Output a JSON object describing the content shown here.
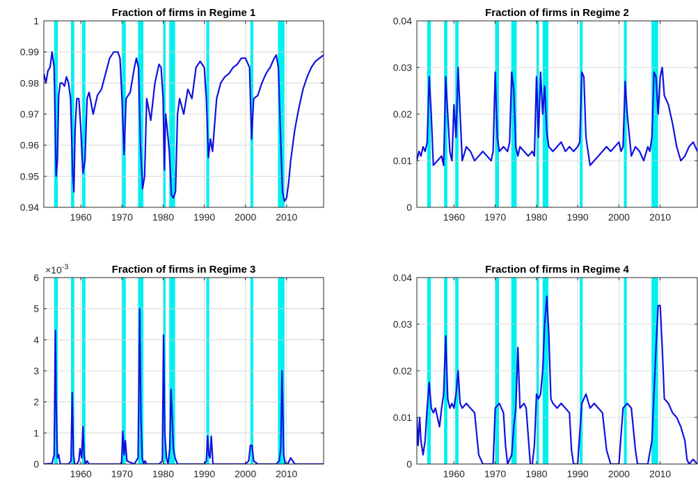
{
  "chart_data": [
    {
      "type": "line",
      "title": "Fraction of firms in Regime 1",
      "xlim": [
        1951,
        2019
      ],
      "ylim": [
        0.94,
        1.0
      ],
      "xticks": [
        1960,
        1970,
        1980,
        1990,
        2000,
        2010
      ],
      "yticks": [
        "0.94",
        "0.95",
        "0.96",
        "0.97",
        "0.98",
        "0.99",
        "1"
      ],
      "ytick_values": [
        0.94,
        0.95,
        0.96,
        0.97,
        0.98,
        0.99,
        1.0
      ],
      "grid": true,
      "line_color": "#1010e0",
      "recession_color": "#00f0f0",
      "recessions": [
        [
          1953.5,
          1954.4
        ],
        [
          1957.6,
          1958.4
        ],
        [
          1960.3,
          1961.1
        ],
        [
          1969.9,
          1970.9
        ],
        [
          1973.9,
          1975.2
        ],
        [
          1980.0,
          1980.6
        ],
        [
          1981.5,
          1982.9
        ],
        [
          1990.5,
          1991.2
        ],
        [
          2001.2,
          2001.9
        ],
        [
          2007.9,
          2009.5
        ]
      ],
      "series": [
        {
          "x": [
            1951.0,
            1951.5,
            1952.0,
            1952.5,
            1953.0,
            1953.5,
            1954.0,
            1954.3,
            1954.6,
            1955.0,
            1955.5,
            1956.0,
            1956.5,
            1957.0,
            1957.5,
            1958.0,
            1958.3,
            1958.6,
            1959.0,
            1959.5,
            1960.0,
            1960.5,
            1961.0,
            1961.5,
            1962.0,
            1963.0,
            1964.0,
            1965.0,
            1966.0,
            1967.0,
            1968.0,
            1969.0,
            1969.5,
            1970.0,
            1970.5,
            1971.0,
            1972.0,
            1973.0,
            1973.5,
            1974.0,
            1974.5,
            1975.0,
            1975.5,
            1976.0,
            1977.0,
            1978.0,
            1979.0,
            1979.5,
            1980.0,
            1980.3,
            1980.6,
            1981.0,
            1981.5,
            1982.0,
            1982.5,
            1983.0,
            1983.5,
            1984.0,
            1985.0,
            1986.0,
            1987.0,
            1988.0,
            1989.0,
            1990.0,
            1990.5,
            1991.0,
            1991.5,
            1992.0,
            1993.0,
            1994.0,
            1995.0,
            1996.0,
            1997.0,
            1998.0,
            1999.0,
            2000.0,
            2001.0,
            2001.5,
            2002.0,
            2003.0,
            2004.0,
            2005.0,
            2006.0,
            2007.0,
            2007.5,
            2008.0,
            2008.5,
            2009.0,
            2009.5,
            2010.0,
            2010.5,
            2011.0,
            2012.0,
            2013.0,
            2014.0,
            2015.0,
            2016.0,
            2017.0,
            2018.0,
            2019.0
          ],
          "values": [
            0.983,
            0.98,
            0.984,
            0.985,
            0.99,
            0.985,
            0.95,
            0.955,
            0.976,
            0.98,
            0.98,
            0.979,
            0.982,
            0.98,
            0.975,
            0.951,
            0.945,
            0.965,
            0.975,
            0.975,
            0.965,
            0.951,
            0.955,
            0.975,
            0.977,
            0.97,
            0.976,
            0.978,
            0.983,
            0.988,
            0.99,
            0.99,
            0.988,
            0.975,
            0.957,
            0.975,
            0.977,
            0.985,
            0.988,
            0.985,
            0.96,
            0.946,
            0.95,
            0.975,
            0.968,
            0.98,
            0.986,
            0.985,
            0.975,
            0.952,
            0.97,
            0.965,
            0.958,
            0.944,
            0.943,
            0.945,
            0.97,
            0.975,
            0.97,
            0.978,
            0.975,
            0.985,
            0.987,
            0.985,
            0.975,
            0.956,
            0.962,
            0.958,
            0.975,
            0.98,
            0.982,
            0.983,
            0.985,
            0.986,
            0.988,
            0.988,
            0.985,
            0.962,
            0.975,
            0.976,
            0.98,
            0.983,
            0.985,
            0.988,
            0.989,
            0.985,
            0.965,
            0.945,
            0.942,
            0.943,
            0.948,
            0.955,
            0.965,
            0.972,
            0.978,
            0.982,
            0.985,
            0.987,
            0.988,
            0.989
          ]
        }
      ]
    },
    {
      "type": "line",
      "title": "Fraction of firms in Regime 2",
      "xlim": [
        1951,
        2019
      ],
      "ylim": [
        0,
        0.04
      ],
      "xticks": [
        1960,
        1970,
        1980,
        1990,
        2000,
        2010
      ],
      "yticks": [
        "0",
        "0.01",
        "0.02",
        "0.03",
        "0.04"
      ],
      "ytick_values": [
        0,
        0.01,
        0.02,
        0.03,
        0.04
      ],
      "grid": true,
      "line_color": "#1010e0",
      "recession_color": "#00f0f0",
      "recessions": [
        [
          1953.5,
          1954.4
        ],
        [
          1957.6,
          1958.4
        ],
        [
          1960.3,
          1961.1
        ],
        [
          1969.9,
          1970.9
        ],
        [
          1973.9,
          1975.2
        ],
        [
          1980.0,
          1980.6
        ],
        [
          1981.5,
          1982.9
        ],
        [
          1990.5,
          1991.2
        ],
        [
          2001.2,
          2001.9
        ],
        [
          2007.9,
          2009.5
        ]
      ],
      "series": [
        {
          "x": [
            1951.0,
            1951.5,
            1952.0,
            1952.5,
            1953.0,
            1953.5,
            1954.0,
            1954.5,
            1955.0,
            1956.0,
            1957.0,
            1957.5,
            1958.0,
            1958.5,
            1959.0,
            1959.5,
            1960.0,
            1960.5,
            1961.0,
            1961.5,
            1962.0,
            1963.0,
            1964.0,
            1965.0,
            1966.0,
            1967.0,
            1968.0,
            1969.0,
            1969.5,
            1970.0,
            1970.5,
            1971.0,
            1972.0,
            1973.0,
            1973.5,
            1974.0,
            1974.5,
            1975.0,
            1975.5,
            1976.0,
            1977.0,
            1978.0,
            1979.0,
            1979.5,
            1980.0,
            1980.5,
            1981.0,
            1981.5,
            1982.0,
            1982.5,
            1983.0,
            1984.0,
            1985.0,
            1986.0,
            1987.0,
            1988.0,
            1989.0,
            1990.0,
            1990.5,
            1991.0,
            1991.5,
            1992.0,
            1993.0,
            1994.0,
            1995.0,
            1996.0,
            1997.0,
            1998.0,
            1999.0,
            2000.0,
            2000.5,
            2001.0,
            2001.5,
            2002.0,
            2003.0,
            2004.0,
            2005.0,
            2006.0,
            2007.0,
            2007.5,
            2008.0,
            2008.5,
            2009.0,
            2009.5,
            2010.0,
            2010.5,
            2011.0,
            2012.0,
            2013.0,
            2014.0,
            2015.0,
            2016.0,
            2017.0,
            2018.0,
            2019.0
          ],
          "values": [
            0.01,
            0.012,
            0.011,
            0.013,
            0.012,
            0.014,
            0.028,
            0.02,
            0.009,
            0.01,
            0.011,
            0.009,
            0.028,
            0.02,
            0.012,
            0.01,
            0.022,
            0.015,
            0.03,
            0.02,
            0.01,
            0.013,
            0.012,
            0.01,
            0.011,
            0.012,
            0.011,
            0.01,
            0.012,
            0.029,
            0.015,
            0.012,
            0.013,
            0.012,
            0.014,
            0.029,
            0.025,
            0.013,
            0.011,
            0.013,
            0.012,
            0.011,
            0.012,
            0.011,
            0.028,
            0.015,
            0.029,
            0.02,
            0.026,
            0.016,
            0.013,
            0.012,
            0.013,
            0.014,
            0.012,
            0.013,
            0.012,
            0.013,
            0.014,
            0.029,
            0.028,
            0.015,
            0.009,
            0.01,
            0.011,
            0.012,
            0.013,
            0.012,
            0.013,
            0.014,
            0.012,
            0.013,
            0.027,
            0.02,
            0.011,
            0.013,
            0.012,
            0.01,
            0.013,
            0.012,
            0.015,
            0.029,
            0.028,
            0.02,
            0.028,
            0.03,
            0.024,
            0.022,
            0.018,
            0.013,
            0.01,
            0.011,
            0.013,
            0.014,
            0.012
          ]
        }
      ]
    },
    {
      "type": "line",
      "title": "Fraction of firms in Regime 3",
      "multiplier": "×10",
      "multiplier_exp": "-3",
      "xlim": [
        1951,
        2019
      ],
      "ylim": [
        0,
        6
      ],
      "xticks": [
        1960,
        1970,
        1980,
        1990,
        2000,
        2010
      ],
      "yticks": [
        "0",
        "1",
        "2",
        "3",
        "4",
        "5",
        "6"
      ],
      "ytick_values": [
        0,
        1,
        2,
        3,
        4,
        5,
        6
      ],
      "grid": true,
      "line_color": "#1010e0",
      "recession_color": "#00f0f0",
      "recessions": [
        [
          1953.5,
          1954.4
        ],
        [
          1957.6,
          1958.4
        ],
        [
          1960.3,
          1961.1
        ],
        [
          1969.9,
          1970.9
        ],
        [
          1973.9,
          1975.2
        ],
        [
          1980.0,
          1980.6
        ],
        [
          1981.5,
          1982.9
        ],
        [
          1990.5,
          1991.2
        ],
        [
          2001.2,
          2001.9
        ],
        [
          2007.9,
          2009.5
        ]
      ],
      "series": [
        {
          "x": [
            1951.0,
            1953.0,
            1953.5,
            1953.8,
            1954.0,
            1954.3,
            1954.6,
            1955.0,
            1957.0,
            1957.6,
            1957.9,
            1958.2,
            1958.5,
            1959.0,
            1959.5,
            1959.8,
            1960.2,
            1960.5,
            1960.8,
            1961.1,
            1961.5,
            1962.0,
            1965.0,
            1968.0,
            1969.5,
            1969.9,
            1970.2,
            1970.5,
            1970.8,
            1971.2,
            1973.0,
            1973.9,
            1974.3,
            1974.6,
            1974.9,
            1975.3,
            1975.6,
            1976.0,
            1979.0,
            1979.8,
            1980.1,
            1980.4,
            1980.8,
            1981.2,
            1981.6,
            1981.9,
            1982.2,
            1982.5,
            1982.9,
            1983.5,
            1984.0,
            1990.0,
            1990.5,
            1990.8,
            1991.1,
            1991.4,
            1991.7,
            1992.1,
            1995.0,
            2000.0,
            2000.8,
            2001.2,
            2001.6,
            2002.0,
            2002.5,
            2003.0,
            2007.5,
            2008.2,
            2008.6,
            2008.9,
            2009.3,
            2009.7,
            2010.3,
            2011.0,
            2012.0,
            2019.0
          ],
          "values": [
            0.0,
            0.02,
            0.3,
            4.3,
            2.0,
            0.2,
            0.3,
            0.0,
            0.0,
            0.1,
            2.3,
            0.3,
            0.0,
            0.0,
            0.1,
            0.5,
            0.2,
            1.2,
            0.3,
            0.0,
            0.1,
            0.0,
            0.0,
            0.0,
            0.0,
            0.05,
            1.05,
            0.3,
            0.75,
            0.1,
            0.0,
            0.2,
            5.0,
            1.5,
            0.2,
            0.0,
            0.1,
            0.0,
            0.0,
            0.1,
            4.15,
            1.0,
            0.2,
            0.0,
            0.5,
            2.4,
            1.5,
            0.5,
            0.2,
            0.0,
            0.0,
            0.0,
            0.1,
            0.9,
            0.3,
            0.2,
            0.9,
            0.0,
            0.0,
            0.0,
            0.1,
            0.6,
            0.6,
            0.1,
            0.05,
            0.0,
            0.0,
            0.1,
            0.5,
            3.0,
            0.3,
            0.0,
            0.0,
            0.2,
            0.0,
            0.0
          ]
        }
      ]
    },
    {
      "type": "line",
      "title": "Fraction of firms in Regime 4",
      "xlim": [
        1951,
        2019
      ],
      "ylim": [
        0,
        0.04
      ],
      "xticks": [
        1960,
        1970,
        1980,
        1990,
        2000,
        2010
      ],
      "yticks": [
        "0",
        "0.01",
        "0.02",
        "0.03",
        "0.04"
      ],
      "ytick_values": [
        0,
        0.01,
        0.02,
        0.03,
        0.04
      ],
      "grid": true,
      "line_color": "#1010e0",
      "recession_color": "#00f0f0",
      "recessions": [
        [
          1953.5,
          1954.4
        ],
        [
          1957.6,
          1958.4
        ],
        [
          1960.3,
          1961.1
        ],
        [
          1969.9,
          1970.9
        ],
        [
          1973.9,
          1975.2
        ],
        [
          1980.0,
          1980.6
        ],
        [
          1981.5,
          1982.9
        ],
        [
          1990.5,
          1991.2
        ],
        [
          2001.2,
          2001.9
        ],
        [
          2007.9,
          2009.5
        ]
      ],
      "series": [
        {
          "x": [
            1951.0,
            1951.3,
            1951.7,
            1952.0,
            1952.5,
            1953.0,
            1953.5,
            1954.0,
            1954.5,
            1955.0,
            1955.5,
            1956.0,
            1956.5,
            1957.0,
            1957.5,
            1958.0,
            1958.5,
            1959.0,
            1959.5,
            1960.0,
            1960.5,
            1961.0,
            1961.5,
            1962.0,
            1963.0,
            1964.0,
            1965.0,
            1966.0,
            1967.0,
            1968.0,
            1968.5,
            1969.5,
            1970.0,
            1971.0,
            1972.0,
            1972.5,
            1973.0,
            1974.0,
            1974.5,
            1975.0,
            1975.5,
            1976.0,
            1977.0,
            1977.5,
            1978.5,
            1979.0,
            1979.5,
            1980.0,
            1980.5,
            1981.0,
            1981.5,
            1982.0,
            1982.5,
            1983.0,
            1983.5,
            1984.0,
            1985.0,
            1986.0,
            1987.0,
            1988.0,
            1988.5,
            1989.0,
            1990.0,
            1991.0,
            1991.5,
            1992.0,
            1993.0,
            1994.0,
            1995.0,
            1996.0,
            1997.0,
            1998.0,
            1999.0,
            1999.5,
            2000.0,
            2001.0,
            2002.0,
            2003.0,
            2004.0,
            2004.5,
            2005.0,
            2006.0,
            2007.0,
            2008.0,
            2009.0,
            2009.5,
            2010.0,
            2010.5,
            2011.0,
            2012.0,
            2013.0,
            2014.0,
            2015.0,
            2016.0,
            2016.5,
            2017.0,
            2018.0,
            2019.0
          ],
          "values": [
            0.01,
            0.004,
            0.01,
            0.005,
            0.002,
            0.005,
            0.012,
            0.0175,
            0.012,
            0.011,
            0.012,
            0.01,
            0.008,
            0.012,
            0.015,
            0.0275,
            0.014,
            0.012,
            0.013,
            0.012,
            0.015,
            0.02,
            0.013,
            0.012,
            0.013,
            0.012,
            0.011,
            0.002,
            0.0,
            0.0,
            0.0,
            0.0,
            0.012,
            0.013,
            0.011,
            0.004,
            0.0,
            0.002,
            0.008,
            0.012,
            0.025,
            0.012,
            0.013,
            0.012,
            0.0,
            0.0,
            0.004,
            0.015,
            0.014,
            0.015,
            0.02,
            0.03,
            0.036,
            0.028,
            0.014,
            0.013,
            0.012,
            0.013,
            0.012,
            0.011,
            0.003,
            0.0,
            0.0,
            0.013,
            0.014,
            0.015,
            0.012,
            0.013,
            0.012,
            0.011,
            0.003,
            0.0,
            0.0,
            0.0,
            0.0,
            0.012,
            0.013,
            0.012,
            0.003,
            0.0,
            0.0,
            0.0,
            0.0,
            0.005,
            0.025,
            0.034,
            0.034,
            0.025,
            0.014,
            0.013,
            0.011,
            0.01,
            0.008,
            0.005,
            0.001,
            0.0,
            0.001,
            0.0
          ]
        }
      ]
    }
  ]
}
